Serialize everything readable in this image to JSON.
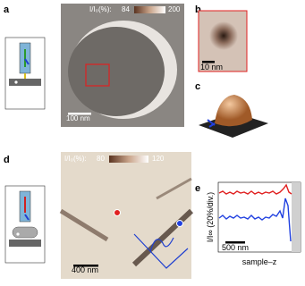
{
  "panels": {
    "a": {
      "label": "a",
      "colorbar": {
        "prefix": "I/I₀(%):",
        "min": 84,
        "max": 200
      },
      "scale_bar": "100 nm"
    },
    "b": {
      "label": "b",
      "scale_bar": "10 nm"
    },
    "c": {
      "label": "c"
    },
    "d": {
      "label": "d",
      "colorbar": {
        "prefix": "I/I₀(%):",
        "min": 80,
        "max": 120
      },
      "scale_bar": "400 nm"
    },
    "e": {
      "label": "e",
      "y_label": "I/I∞ (20%/div.)",
      "scale_bar": "500 nm",
      "x_label": "sample–z"
    }
  }
}
